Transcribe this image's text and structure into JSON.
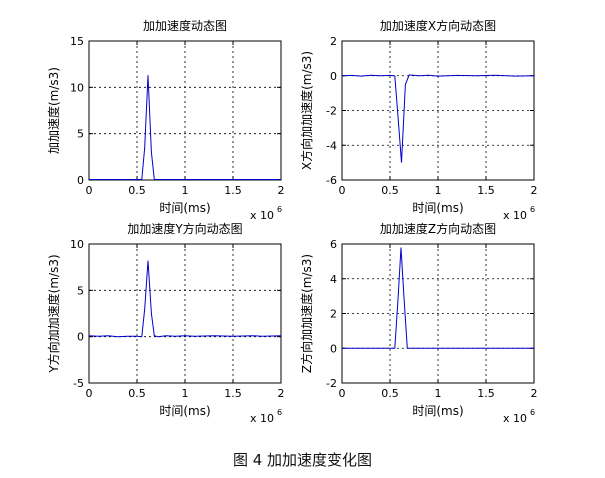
{
  "figure": {
    "caption": "图 4  加加速度变化图"
  },
  "chart_data": [
    {
      "type": "line",
      "title": "加加速度动态图",
      "xlabel": "时间(ms)",
      "ylabel": "加加速度(m/s3)",
      "x_multiplier": "x 10",
      "x_multiplier_exp": "6",
      "xlim": [
        0,
        2
      ],
      "ylim": [
        0,
        15
      ],
      "xticks": [
        "0",
        "0.5",
        "1",
        "1.5",
        "2"
      ],
      "yticks": [
        "0",
        "5",
        "10",
        "15"
      ],
      "grid": true,
      "series": [
        {
          "color": "#0000cc",
          "x": [
            0,
            0.55,
            0.58,
            0.615,
            0.65,
            0.68,
            0.72,
            1.0,
            1.5,
            2.0
          ],
          "y": [
            0.05,
            0.05,
            3.5,
            11.3,
            3.0,
            0.05,
            0.05,
            0.05,
            0.05,
            0.05
          ]
        }
      ]
    },
    {
      "type": "line",
      "title": "加加速度X方向动态图",
      "xlabel": "时间(ms)",
      "ylabel": "X方向加加速度(m/s3)",
      "x_multiplier": "x 10",
      "x_multiplier_exp": "6",
      "xlim": [
        0,
        2
      ],
      "ylim": [
        -6,
        2
      ],
      "xticks": [
        "0",
        "0.5",
        "1",
        "1.5",
        "2"
      ],
      "yticks": [
        "-6",
        "-4",
        "-2",
        "0",
        "2"
      ],
      "grid": true,
      "series": [
        {
          "color": "#0000cc",
          "x": [
            0,
            0.1,
            0.2,
            0.3,
            0.4,
            0.5,
            0.55,
            0.585,
            0.62,
            0.66,
            0.7,
            0.8,
            0.9,
            1.0,
            1.2,
            1.4,
            1.6,
            1.8,
            2.0
          ],
          "y": [
            0,
            0.02,
            -0.02,
            0.03,
            0,
            0.02,
            0,
            -2.5,
            -5.0,
            -0.5,
            0.05,
            0,
            0.03,
            -0.02,
            0.02,
            0,
            0.03,
            -0.02,
            0
          ]
        }
      ]
    },
    {
      "type": "line",
      "title": "加加速度Y方向动态图",
      "xlabel": "时间(ms)",
      "ylabel": "Y方向加加速度(m/s3)",
      "x_multiplier": "x 10",
      "x_multiplier_exp": "6",
      "xlim": [
        0,
        2
      ],
      "ylim": [
        -5,
        10
      ],
      "xticks": [
        "0",
        "0.5",
        "1",
        "1.5",
        "2"
      ],
      "yticks": [
        "-5",
        "0",
        "5",
        "10"
      ],
      "grid": true,
      "series": [
        {
          "color": "#0000cc",
          "x": [
            0,
            0.1,
            0.2,
            0.3,
            0.4,
            0.5,
            0.55,
            0.58,
            0.615,
            0.65,
            0.68,
            0.72,
            0.8,
            0.9,
            1.0,
            1.1,
            1.3,
            1.5,
            1.7,
            1.8,
            2.0
          ],
          "y": [
            0.1,
            0.05,
            0.1,
            0,
            0.05,
            0.05,
            0,
            3.0,
            8.2,
            2.5,
            0.1,
            0,
            0.1,
            0.05,
            0.1,
            0.05,
            0.1,
            0.05,
            0.1,
            0.05,
            0.1
          ]
        }
      ]
    },
    {
      "type": "line",
      "title": "加加速度Z方向动态图",
      "xlabel": "时间(ms)",
      "ylabel": "Z方向加加速度(m/s3)",
      "x_multiplier": "x 10",
      "x_multiplier_exp": "6",
      "xlim": [
        0,
        2
      ],
      "ylim": [
        -2,
        6
      ],
      "xticks": [
        "0",
        "0.5",
        "1",
        "1.5",
        "2"
      ],
      "yticks": [
        "-2",
        "0",
        "2",
        "4",
        "6"
      ],
      "grid": true,
      "series": [
        {
          "color": "#0000cc",
          "x": [
            0,
            0.55,
            0.585,
            0.615,
            0.645,
            0.68,
            0.72,
            1.0,
            1.5,
            2.0
          ],
          "y": [
            0,
            0,
            3.0,
            5.8,
            3.0,
            0,
            0,
            0,
            0,
            0
          ]
        }
      ]
    }
  ]
}
